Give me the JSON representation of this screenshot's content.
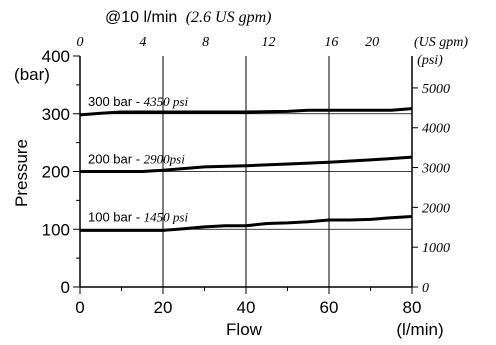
{
  "chart_data": {
    "type": "line",
    "title": "@10 l/min",
    "title_suffix": "(2.6 US gpm)",
    "xlabel": "Flow",
    "xunit": "(l/min)",
    "ylabel": "Pressure",
    "yunit": "(bar)",
    "y2unit": "(psi)",
    "x2unit": "(US gpm)",
    "xlim": [
      0,
      80
    ],
    "ylim": [
      0,
      400
    ],
    "x_ticks": [
      0,
      20,
      40,
      60,
      80
    ],
    "y_ticks": [
      0,
      100,
      200,
      300,
      400
    ],
    "x2_ticks": [
      0,
      4,
      8,
      12,
      16,
      20
    ],
    "x2_factor": 0.2642,
    "y2_ticks": [
      0,
      1000,
      2000,
      3000,
      4000,
      5000
    ],
    "y2_factor": 14.5038,
    "grid_x": [
      20,
      40,
      60
    ],
    "reference_lines": [
      100,
      200,
      300
    ],
    "series": [
      {
        "name": "300 bar - 4350 psi",
        "label_prefix": "300 bar - ",
        "label_suffix": "4350 psi",
        "x": [
          0,
          5,
          10,
          20,
          30,
          40,
          50,
          55,
          60,
          70,
          75,
          80
        ],
        "y": [
          298,
          301,
          303,
          303,
          303,
          303,
          304,
          306,
          306,
          306,
          306,
          309
        ]
      },
      {
        "name": "200 bar - 2900psi",
        "label_prefix": "200 bar - ",
        "label_suffix": "2900psi",
        "x": [
          0,
          5,
          10,
          15,
          20,
          30,
          40,
          50,
          60,
          70,
          80
        ],
        "y": [
          200,
          200,
          200,
          200,
          202,
          208,
          210,
          213,
          216,
          220,
          225
        ]
      },
      {
        "name": "100 bar - 1450 psi",
        "label_prefix": "100 bar - ",
        "label_suffix": "1450 psi",
        "x": [
          0,
          10,
          20,
          25,
          30,
          35,
          40,
          45,
          50,
          55,
          60,
          65,
          70,
          75,
          80
        ],
        "y": [
          98,
          98,
          98,
          101,
          104,
          106,
          106,
          110,
          111,
          113,
          116,
          116,
          117,
          120,
          122
        ]
      }
    ]
  }
}
